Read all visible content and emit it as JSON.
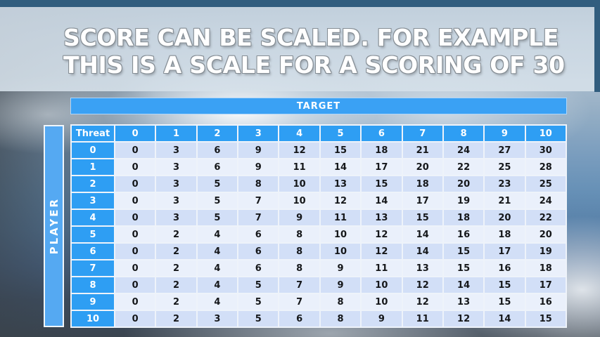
{
  "slide": {
    "title": {
      "line1": "SCORE CAN BE SCALED. FOR EXAMPLE",
      "line2": "THIS IS A SCALE FOR A SCORING OF 30"
    }
  },
  "table": {
    "target_label": "TARGET",
    "player_label": "PLAYER",
    "corner_label": "Threat",
    "column_headers": [
      "0",
      "1",
      "2",
      "3",
      "4",
      "5",
      "6",
      "7",
      "8",
      "9",
      "10"
    ],
    "row_headers": [
      "0",
      "1",
      "2",
      "3",
      "4",
      "5",
      "6",
      "7",
      "8",
      "9",
      "10"
    ],
    "rows": [
      [
        0,
        3,
        6,
        9,
        12,
        15,
        18,
        21,
        24,
        27,
        30
      ],
      [
        0,
        3,
        6,
        9,
        11,
        14,
        17,
        20,
        22,
        25,
        28
      ],
      [
        0,
        3,
        5,
        8,
        10,
        13,
        15,
        18,
        20,
        23,
        25
      ],
      [
        0,
        3,
        5,
        7,
        10,
        12,
        14,
        17,
        19,
        21,
        24
      ],
      [
        0,
        3,
        5,
        7,
        9,
        11,
        13,
        15,
        18,
        20,
        22
      ],
      [
        0,
        2,
        4,
        6,
        8,
        10,
        12,
        14,
        16,
        18,
        20
      ],
      [
        0,
        2,
        4,
        6,
        8,
        10,
        12,
        14,
        15,
        17,
        19
      ],
      [
        0,
        2,
        4,
        6,
        8,
        9,
        11,
        13,
        15,
        16,
        18
      ],
      [
        0,
        2,
        4,
        5,
        7,
        9,
        10,
        12,
        14,
        15,
        17
      ],
      [
        0,
        2,
        4,
        5,
        7,
        8,
        10,
        12,
        13,
        15,
        16
      ],
      [
        0,
        2,
        3,
        5,
        6,
        8,
        9,
        11,
        12,
        14,
        15
      ]
    ]
  },
  "colors": {
    "top_sky": "#315d7e",
    "title_band": "#ccd8e3",
    "title_text": "#ffffff",
    "title_outline": "#858d94",
    "target_bar_blue": "#3aa1f4",
    "header_blue": "#2e9ef3",
    "player_bar_blue": "#55a9f2",
    "row_even": "#d2dff7",
    "row_odd": "#eaf0fb",
    "grid_line": "#eef3fa",
    "body_text": "#15171a"
  }
}
